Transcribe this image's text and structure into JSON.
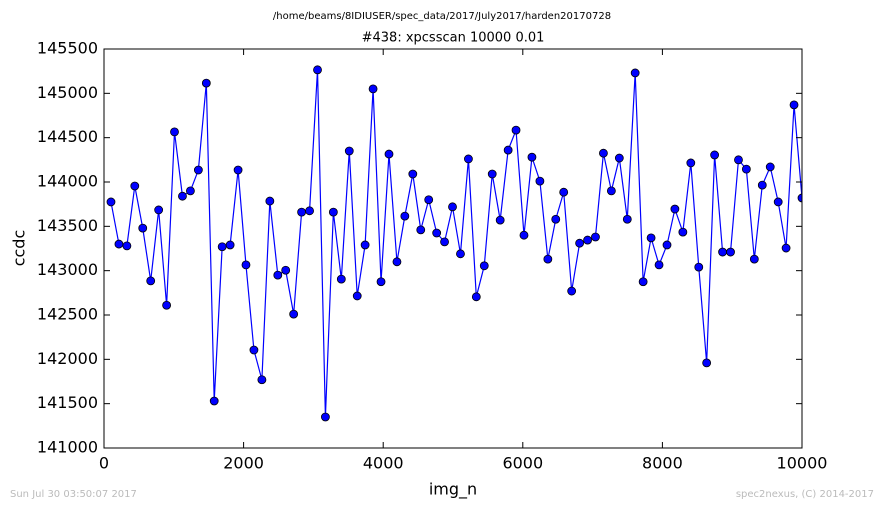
{
  "chart_data": {
    "type": "line",
    "suptitle": "/home/beams/8IDIUSER/spec_data/2017/July2017/harden20170728",
    "title": "#438: xpcsscan 10000 0.01",
    "xlabel": "img_n",
    "ylabel": "ccdc",
    "footer_left": "Sun Jul 30 03:50:07 2017",
    "footer_right": "spec2nexus, (C) 2014-2017",
    "x": [
      100,
      214,
      328,
      441,
      555,
      669,
      783,
      897,
      1010,
      1124,
      1238,
      1352,
      1466,
      1579,
      1693,
      1807,
      1921,
      2034,
      2148,
      2262,
      2376,
      2490,
      2603,
      2717,
      2831,
      2945,
      3059,
      3172,
      3286,
      3400,
      3514,
      3628,
      3741,
      3855,
      3969,
      4083,
      4197,
      4310,
      4424,
      4538,
      4652,
      4766,
      4879,
      4993,
      5107,
      5221,
      5334,
      5448,
      5562,
      5676,
      5790,
      5903,
      6017,
      6131,
      6245,
      6359,
      6472,
      6586,
      6700,
      6814,
      6928,
      7041,
      7155,
      7269,
      7383,
      7497,
      7610,
      7724,
      7838,
      7952,
      8066,
      8179,
      8293,
      8407,
      8521,
      8634,
      8748,
      8862,
      8976,
      9090,
      9203,
      9317,
      9431,
      9545,
      9659,
      9772,
      9886,
      10000
    ],
    "series": [
      {
        "color": "#0000ff",
        "values": [
          143775,
          143300,
          143280,
          143955,
          143480,
          142885,
          143685,
          142610,
          144565,
          143840,
          143900,
          144135,
          145115,
          141530,
          143270,
          143290,
          144135,
          143065,
          142105,
          141770,
          143785,
          142950,
          143005,
          142510,
          143660,
          143675,
          145265,
          141350,
          143660,
          142905,
          144350,
          142715,
          143290,
          145050,
          142875,
          144315,
          143100,
          143615,
          144090,
          143460,
          143800,
          143425,
          143325,
          143720,
          143190,
          144260,
          142705,
          143055,
          144090,
          143570,
          144360,
          144585,
          143400,
          144280,
          144010,
          143130,
          143580,
          143885,
          142770,
          143310,
          143345,
          143380,
          144325,
          143900,
          144270,
          143580,
          145230,
          142875,
          143370,
          143065,
          143290,
          143695,
          143435,
          144215,
          143040,
          141960,
          144305,
          143210,
          143210,
          144250,
          144145,
          143130,
          143965,
          144170,
          143775,
          143255,
          144870,
          143820
        ]
      }
    ],
    "xlim": [
      0,
      10000
    ],
    "xticks": [
      0,
      2000,
      4000,
      6000,
      8000,
      10000
    ],
    "ylim": [
      141000,
      145500
    ],
    "yticks": [
      141000,
      141500,
      142000,
      142500,
      143000,
      143500,
      144000,
      144500,
      145000,
      145500
    ],
    "grid": false
  }
}
